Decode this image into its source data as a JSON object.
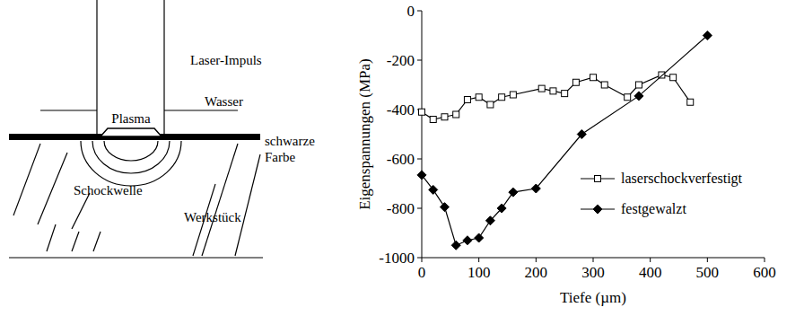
{
  "chart_data": {
    "type": "line",
    "x_label": "Tiefe (µm)",
    "y_label": "Eigenspannungen (MPa)",
    "xlim": [
      0,
      600
    ],
    "xticks": [
      0,
      100,
      200,
      300,
      400,
      500,
      600
    ],
    "ylim": [
      -1000,
      0
    ],
    "yticks": [
      -1000,
      -800,
      -600,
      -400,
      -200,
      0
    ],
    "grid": false,
    "legend": "lower right",
    "series": [
      {
        "name": "laserschockverfestigt",
        "color": "#000000",
        "marker": "square-open",
        "line_style": "solid",
        "x": [
          0,
          20,
          40,
          60,
          80,
          100,
          120,
          140,
          160,
          210,
          230,
          250,
          270,
          300,
          320,
          360,
          380,
          420,
          440,
          470
        ],
        "values": [
          -410,
          -440,
          -430,
          -420,
          -360,
          -350,
          -380,
          -350,
          -340,
          -315,
          -325,
          -335,
          -290,
          -270,
          -300,
          -350,
          -300,
          -260,
          -270,
          -370
        ]
      },
      {
        "name": "festgewalzt",
        "color": "#000000",
        "marker": "diamond",
        "line_style": "solid",
        "x": [
          0,
          20,
          40,
          60,
          80,
          100,
          120,
          140,
          160,
          200,
          280,
          380,
          500
        ],
        "values": [
          -665,
          -725,
          -795,
          -950,
          -930,
          -920,
          -850,
          -800,
          -735,
          -720,
          -500,
          -345,
          -100
        ]
      }
    ]
  },
  "diagram": {
    "laser_pulse": "Laser-Impuls",
    "water": "Wasser",
    "plasma": "Plasma",
    "coating": [
      "schwarze",
      "Farbe"
    ],
    "shock_wave": "Schockwelle",
    "workpiece": "Werkstück"
  }
}
